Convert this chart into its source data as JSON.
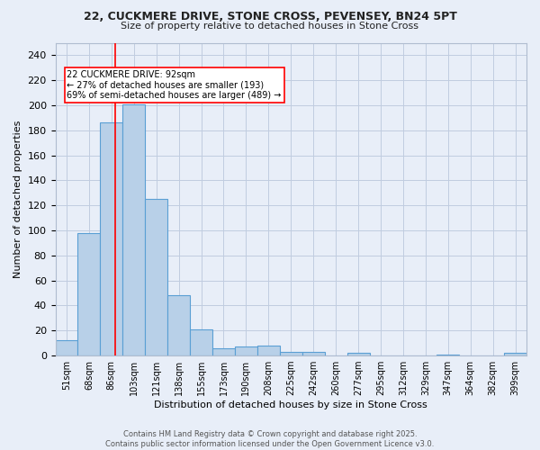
{
  "title_line1": "22, CUCKMERE DRIVE, STONE CROSS, PEVENSEY, BN24 5PT",
  "title_line2": "Size of property relative to detached houses in Stone Cross",
  "xlabel": "Distribution of detached houses by size in Stone Cross",
  "ylabel": "Number of detached properties",
  "bin_labels": [
    "51sqm",
    "68sqm",
    "86sqm",
    "103sqm",
    "121sqm",
    "138sqm",
    "155sqm",
    "173sqm",
    "190sqm",
    "208sqm",
    "225sqm",
    "242sqm",
    "260sqm",
    "277sqm",
    "295sqm",
    "312sqm",
    "329sqm",
    "347sqm",
    "364sqm",
    "382sqm",
    "399sqm"
  ],
  "bar_values": [
    12,
    98,
    186,
    201,
    125,
    48,
    21,
    6,
    7,
    8,
    3,
    3,
    0,
    2,
    0,
    0,
    0,
    1,
    0,
    0,
    2
  ],
  "bar_color": "#b8d0e8",
  "bar_edge_color": "#5a9fd4",
  "ylim": [
    0,
    250
  ],
  "yticks": [
    0,
    20,
    40,
    60,
    80,
    100,
    120,
    140,
    160,
    180,
    200,
    220,
    240
  ],
  "red_line_x": 2.15,
  "annotation_text_line1": "22 CUCKMERE DRIVE: 92sqm",
  "annotation_text_line2": "← 27% of detached houses are smaller (193)",
  "annotation_text_line3": "69% of semi-detached houses are larger (489) →",
  "footer_line1": "Contains HM Land Registry data © Crown copyright and database right 2025.",
  "footer_line2": "Contains public sector information licensed under the Open Government Licence v3.0.",
  "background_color": "#e8eef8",
  "grid_color": "#c0cce0"
}
